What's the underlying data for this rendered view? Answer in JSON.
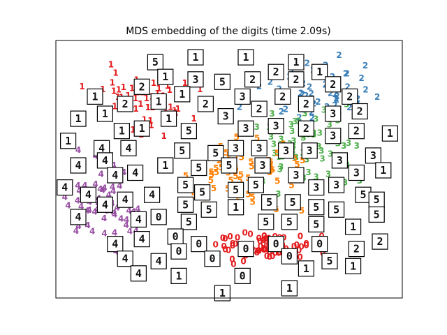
{
  "chart_data": {
    "type": "scatter",
    "title": "MDS embedding of the digits (time 2.09s)",
    "xlim": [
      0,
      1
    ],
    "ylim": [
      0,
      1
    ],
    "grid": false,
    "ticks": false,
    "legend": "none",
    "class_colors": {
      "0": "#e41a1c",
      "1": "#e41a1c",
      "2": "#377eb8",
      "3": "#4daf4a",
      "4": "#984ea3",
      "5": "#ff7f00"
    },
    "clusters": [
      {
        "label": "1",
        "center": [
          0.25,
          0.78
        ],
        "spread": [
          0.13,
          0.12
        ],
        "count": 55
      },
      {
        "label": "2",
        "center": [
          0.76,
          0.82
        ],
        "spread": [
          0.16,
          0.11
        ],
        "count": 60
      },
      {
        "label": "3",
        "center": [
          0.75,
          0.58
        ],
        "spread": [
          0.17,
          0.14
        ],
        "count": 70
      },
      {
        "label": "4",
        "center": [
          0.13,
          0.37
        ],
        "spread": [
          0.1,
          0.15
        ],
        "count": 60
      },
      {
        "label": "5",
        "center": [
          0.53,
          0.48
        ],
        "spread": [
          0.16,
          0.13
        ],
        "count": 60
      },
      {
        "label": "0",
        "center": [
          0.6,
          0.18
        ],
        "spread": [
          0.13,
          0.06
        ],
        "count": 75
      }
    ],
    "thumbnails": [
      {
        "digit": "5",
        "x": 0.28,
        "y": 0.94
      },
      {
        "digit": "1",
        "x": 0.4,
        "y": 0.96
      },
      {
        "digit": "1",
        "x": 0.55,
        "y": 0.96
      },
      {
        "digit": "1",
        "x": 0.7,
        "y": 0.94
      },
      {
        "digit": "1",
        "x": 0.77,
        "y": 0.9
      },
      {
        "digit": "2",
        "x": 0.24,
        "y": 0.84
      },
      {
        "digit": "1",
        "x": 0.31,
        "y": 0.88
      },
      {
        "digit": "3",
        "x": 0.4,
        "y": 0.87
      },
      {
        "digit": "5",
        "x": 0.48,
        "y": 0.86
      },
      {
        "digit": "2",
        "x": 0.57,
        "y": 0.87
      },
      {
        "digit": "2",
        "x": 0.64,
        "y": 0.9
      },
      {
        "digit": "2",
        "x": 0.7,
        "y": 0.87
      },
      {
        "digit": "2",
        "x": 0.81,
        "y": 0.85
      },
      {
        "digit": "2",
        "x": 0.86,
        "y": 0.8
      },
      {
        "digit": "1",
        "x": 0.1,
        "y": 0.8
      },
      {
        "digit": "2",
        "x": 0.19,
        "y": 0.77
      },
      {
        "digit": "1",
        "x": 0.29,
        "y": 0.78
      },
      {
        "digit": "1",
        "x": 0.36,
        "y": 0.81
      },
      {
        "digit": "2",
        "x": 0.43,
        "y": 0.77
      },
      {
        "digit": "3",
        "x": 0.54,
        "y": 0.8
      },
      {
        "digit": "2",
        "x": 0.59,
        "y": 0.75
      },
      {
        "digit": "2",
        "x": 0.66,
        "y": 0.8
      },
      {
        "digit": "2",
        "x": 0.73,
        "y": 0.77
      },
      {
        "digit": "3",
        "x": 0.81,
        "y": 0.73
      },
      {
        "digit": "2",
        "x": 0.89,
        "y": 0.74
      },
      {
        "digit": "1",
        "x": 0.05,
        "y": 0.71
      },
      {
        "digit": "1",
        "x": 0.13,
        "y": 0.73
      },
      {
        "digit": "1",
        "x": 0.18,
        "y": 0.66
      },
      {
        "digit": "1",
        "x": 0.24,
        "y": 0.67
      },
      {
        "digit": "1",
        "x": 0.32,
        "y": 0.71
      },
      {
        "digit": "5",
        "x": 0.38,
        "y": 0.66
      },
      {
        "digit": "3",
        "x": 0.49,
        "y": 0.72
      },
      {
        "digit": "3",
        "x": 0.55,
        "y": 0.67
      },
      {
        "digit": "3",
        "x": 0.64,
        "y": 0.68
      },
      {
        "digit": "2",
        "x": 0.73,
        "y": 0.67
      },
      {
        "digit": "3",
        "x": 0.81,
        "y": 0.64
      },
      {
        "digit": "2",
        "x": 0.88,
        "y": 0.66
      },
      {
        "digit": "1",
        "x": 0.98,
        "y": 0.65
      },
      {
        "digit": "1",
        "x": 0.02,
        "y": 0.62
      },
      {
        "digit": "4",
        "x": 0.12,
        "y": 0.59
      },
      {
        "digit": "4",
        "x": 0.2,
        "y": 0.59
      },
      {
        "digit": "5",
        "x": 0.36,
        "y": 0.58
      },
      {
        "digit": "5",
        "x": 0.46,
        "y": 0.57
      },
      {
        "digit": "3",
        "x": 0.52,
        "y": 0.59
      },
      {
        "digit": "3",
        "x": 0.59,
        "y": 0.59
      },
      {
        "digit": "3",
        "x": 0.67,
        "y": 0.58
      },
      {
        "digit": "3",
        "x": 0.74,
        "y": 0.58
      },
      {
        "digit": "3",
        "x": 0.83,
        "y": 0.54
      },
      {
        "digit": "3",
        "x": 0.93,
        "y": 0.56
      },
      {
        "digit": "4",
        "x": 0.05,
        "y": 0.52
      },
      {
        "digit": "4",
        "x": 0.13,
        "y": 0.54
      },
      {
        "digit": "4",
        "x": 0.16,
        "y": 0.48
      },
      {
        "digit": "4",
        "x": 0.22,
        "y": 0.49
      },
      {
        "digit": "1",
        "x": 0.31,
        "y": 0.52
      },
      {
        "digit": "5",
        "x": 0.41,
        "y": 0.51
      },
      {
        "digit": "5",
        "x": 0.5,
        "y": 0.52
      },
      {
        "digit": "3",
        "x": 0.6,
        "y": 0.52
      },
      {
        "digit": "3",
        "x": 0.7,
        "y": 0.48
      },
      {
        "digit": "3",
        "x": 0.88,
        "y": 0.49
      },
      {
        "digit": "1",
        "x": 0.96,
        "y": 0.5
      },
      {
        "digit": "4",
        "x": 0.01,
        "y": 0.43
      },
      {
        "digit": "4",
        "x": 0.08,
        "y": 0.4
      },
      {
        "digit": "4",
        "x": 0.27,
        "y": 0.4
      },
      {
        "digit": "5",
        "x": 0.37,
        "y": 0.44
      },
      {
        "digit": "5",
        "x": 0.42,
        "y": 0.41
      },
      {
        "digit": "5",
        "x": 0.52,
        "y": 0.42
      },
      {
        "digit": "5",
        "x": 0.58,
        "y": 0.44
      },
      {
        "digit": "3",
        "x": 0.76,
        "y": 0.43
      },
      {
        "digit": "3",
        "x": 0.82,
        "y": 0.44
      },
      {
        "digit": "5",
        "x": 0.9,
        "y": 0.4
      },
      {
        "digit": "4",
        "x": 0.13,
        "y": 0.36
      },
      {
        "digit": "4",
        "x": 0.19,
        "y": 0.38
      },
      {
        "digit": "5",
        "x": 0.37,
        "y": 0.36
      },
      {
        "digit": "5",
        "x": 0.44,
        "y": 0.34
      },
      {
        "digit": "1",
        "x": 0.52,
        "y": 0.35
      },
      {
        "digit": "5",
        "x": 0.62,
        "y": 0.37
      },
      {
        "digit": "5",
        "x": 0.69,
        "y": 0.37
      },
      {
        "digit": "5",
        "x": 0.76,
        "y": 0.35
      },
      {
        "digit": "5",
        "x": 0.82,
        "y": 0.34
      },
      {
        "digit": "5",
        "x": 0.94,
        "y": 0.38
      },
      {
        "digit": "4",
        "x": 0.05,
        "y": 0.31
      },
      {
        "digit": "4",
        "x": 0.23,
        "y": 0.3
      },
      {
        "digit": "0",
        "x": 0.29,
        "y": 0.31
      },
      {
        "digit": "5",
        "x": 0.38,
        "y": 0.29
      },
      {
        "digit": "5",
        "x": 0.61,
        "y": 0.29
      },
      {
        "digit": "5",
        "x": 0.68,
        "y": 0.29
      },
      {
        "digit": "5",
        "x": 0.76,
        "y": 0.28
      },
      {
        "digit": "1",
        "x": 0.87,
        "y": 0.27
      },
      {
        "digit": "5",
        "x": 0.94,
        "y": 0.32
      },
      {
        "digit": "4",
        "x": 0.16,
        "y": 0.2
      },
      {
        "digit": "4",
        "x": 0.24,
        "y": 0.22
      },
      {
        "digit": "0",
        "x": 0.34,
        "y": 0.23
      },
      {
        "digit": "0",
        "x": 0.41,
        "y": 0.2
      },
      {
        "digit": "0",
        "x": 0.55,
        "y": 0.18
      },
      {
        "digit": "0",
        "x": 0.64,
        "y": 0.2
      },
      {
        "digit": "0",
        "x": 0.77,
        "y": 0.2
      },
      {
        "digit": "2",
        "x": 0.88,
        "y": 0.18
      },
      {
        "digit": "2",
        "x": 0.95,
        "y": 0.21
      },
      {
        "digit": "0",
        "x": 0.35,
        "y": 0.17
      },
      {
        "digit": "0",
        "x": 0.45,
        "y": 0.14
      },
      {
        "digit": "0",
        "x": 0.68,
        "y": 0.15
      },
      {
        "digit": "4",
        "x": 0.19,
        "y": 0.14
      },
      {
        "digit": "4",
        "x": 0.29,
        "y": 0.13
      },
      {
        "digit": "1",
        "x": 0.73,
        "y": 0.1
      },
      {
        "digit": "5",
        "x": 0.8,
        "y": 0.13
      },
      {
        "digit": "1",
        "x": 0.87,
        "y": 0.11
      },
      {
        "digit": "4",
        "x": 0.23,
        "y": 0.08
      },
      {
        "digit": "1",
        "x": 0.35,
        "y": 0.07
      },
      {
        "digit": "0",
        "x": 0.54,
        "y": 0.07
      },
      {
        "digit": "1",
        "x": 0.48,
        "y": 0.0
      },
      {
        "digit": "1",
        "x": 0.68,
        "y": 0.02
      }
    ]
  }
}
